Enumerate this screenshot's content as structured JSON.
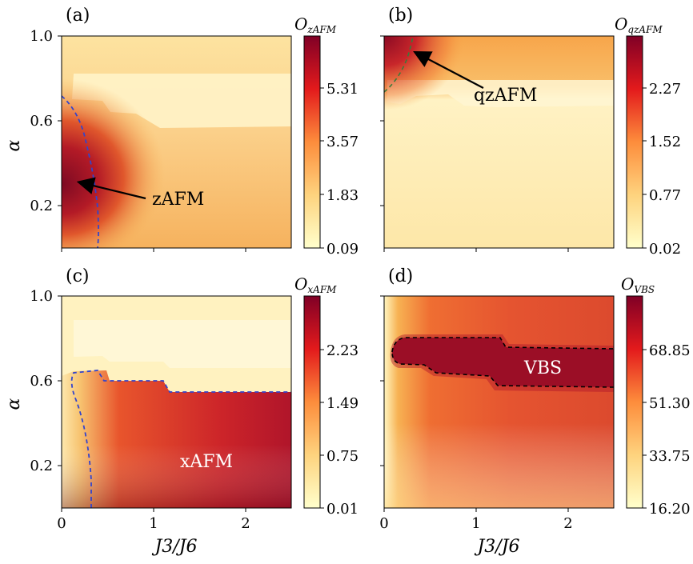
{
  "chart_data": [
    {
      "type": "heatmap",
      "panel_label": "(a)",
      "colorbar_title": "O",
      "colorbar_sub": "zAFM",
      "colorbar_ticks": [
        "0.09",
        "1.83",
        "3.57",
        "5.31"
      ],
      "colorbar_range": [
        0.09,
        7.0
      ],
      "xlim": [
        0,
        2.5
      ],
      "ylim": [
        0,
        1.0
      ],
      "xticks": [
        "0",
        "1",
        "2"
      ],
      "yticks": [
        "0.2",
        "0.6",
        "1.0"
      ],
      "xlabel": "",
      "ylabel": "α",
      "annotation": "zAFM",
      "colors": {
        "low": "#fff5c0",
        "mid": "#f29d3b",
        "high": "#8b0a24"
      }
    },
    {
      "type": "heatmap",
      "panel_label": "(b)",
      "colorbar_title": "O",
      "colorbar_sub": "qzAFM",
      "colorbar_ticks": [
        "0.02",
        "0.77",
        "1.52",
        "2.27"
      ],
      "colorbar_range": [
        0.02,
        3.0
      ],
      "xlim": [
        0,
        2.5
      ],
      "ylim": [
        0,
        1.0
      ],
      "xticks": [
        "0",
        "1",
        "2"
      ],
      "yticks": [
        "0.2",
        "0.6",
        "1.0"
      ],
      "xlabel": "",
      "ylabel": "",
      "annotation": "qzAFM"
    },
    {
      "type": "heatmap",
      "panel_label": "(c)",
      "colorbar_title": "O",
      "colorbar_sub": "xAFM",
      "colorbar_ticks": [
        "0.01",
        "0.75",
        "1.49",
        "2.23"
      ],
      "colorbar_range": [
        0.01,
        2.97
      ],
      "xlim": [
        0,
        2.5
      ],
      "ylim": [
        0,
        1.0
      ],
      "xticks": [
        "0",
        "1",
        "2"
      ],
      "yticks": [
        "0.2",
        "0.6",
        "1.0"
      ],
      "xlabel": "J3/J6",
      "ylabel": "α",
      "annotation": "xAFM"
    },
    {
      "type": "heatmap",
      "panel_label": "(d)",
      "colorbar_title": "O",
      "colorbar_sub": "VBS",
      "colorbar_ticks": [
        "16.20",
        "33.75",
        "51.30",
        "68.85"
      ],
      "colorbar_range": [
        16.2,
        86.4
      ],
      "xlim": [
        0,
        2.5
      ],
      "ylim": [
        0,
        1.0
      ],
      "xticks": [
        "0",
        "1",
        "2"
      ],
      "yticks": [
        "0.2",
        "0.6",
        "1.0"
      ],
      "xlabel": "J3/J6",
      "ylabel": "",
      "annotation": "VBS"
    }
  ]
}
